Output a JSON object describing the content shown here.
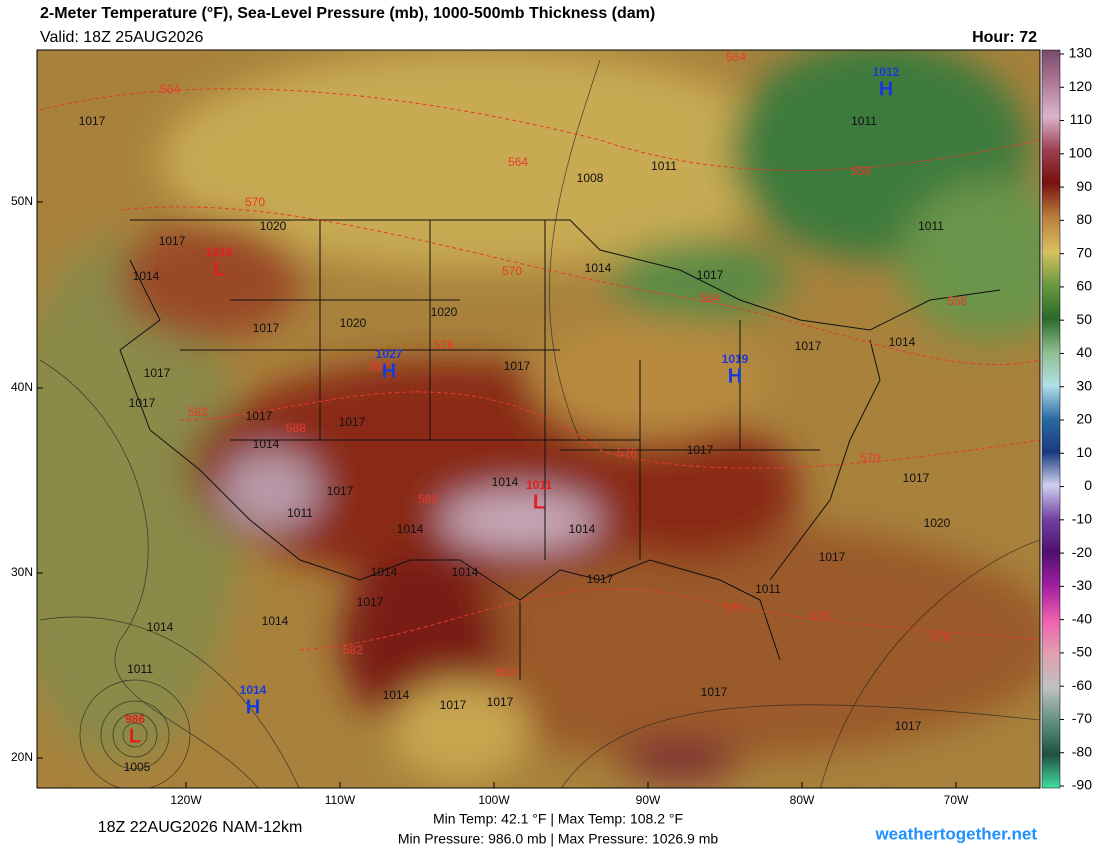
{
  "header": {
    "title": "2-Meter Temperature (°F), Sea-Level Pressure (mb), 1000-500mb Thickness (dam)",
    "valid": "Valid: 18Z 25AUG2026",
    "hour": "Hour: 72"
  },
  "map": {
    "lat_labels": [
      "50N",
      "40N",
      "30N",
      "20N"
    ],
    "lon_labels": [
      "120W",
      "110W",
      "100W",
      "90W",
      "80W",
      "70W"
    ],
    "centers": [
      {
        "type": "H",
        "value": "1012"
      },
      {
        "type": "L",
        "value": "1018"
      },
      {
        "type": "H",
        "value": "1027"
      },
      {
        "type": "H",
        "value": "1019"
      },
      {
        "type": "L",
        "value": "1011"
      },
      {
        "type": "H",
        "value": "1014"
      },
      {
        "type": "L",
        "value": "986"
      }
    ],
    "isobar_labels": [
      "1017",
      "1017",
      "1014",
      "1020",
      "1017",
      "1020",
      "1020",
      "1017",
      "1017",
      "1017",
      "1014",
      "1017",
      "1017",
      "1011",
      "1014",
      "1014",
      "1014",
      "1017",
      "1014",
      "1014",
      "1017",
      "1014",
      "1017",
      "1017",
      "1014",
      "1017",
      "1017",
      "1020",
      "1017",
      "1017",
      "1011",
      "1014",
      "1014",
      "1011",
      "1005",
      "1014",
      "1017",
      "1017",
      "1017",
      "1017",
      "1011",
      "1011",
      "1008",
      "1011"
    ],
    "thickness_labels": [
      "564",
      "570",
      "564",
      "564",
      "558",
      "558",
      "570",
      "564",
      "576",
      "582",
      "582",
      "588",
      "588",
      "576",
      "570",
      "582",
      "582",
      "576",
      "576",
      "576"
    ]
  },
  "colorbar": {
    "ticks": [
      130,
      120,
      110,
      100,
      90,
      80,
      70,
      60,
      50,
      40,
      30,
      20,
      10,
      0,
      -10,
      -20,
      -30,
      -40,
      -50,
      -60,
      -70,
      -80,
      -90
    ],
    "range": [
      -90,
      130
    ]
  },
  "footer": {
    "run": "18Z 22AUG2026 NAM-12km",
    "temps": "Min Temp:  42.1 °F | Max Temp: 108.2 °F",
    "pressures": "Min Pressure: 986.0 mb | Max Pressure: 1026.9 mb",
    "site": "weathertogether.net"
  }
}
